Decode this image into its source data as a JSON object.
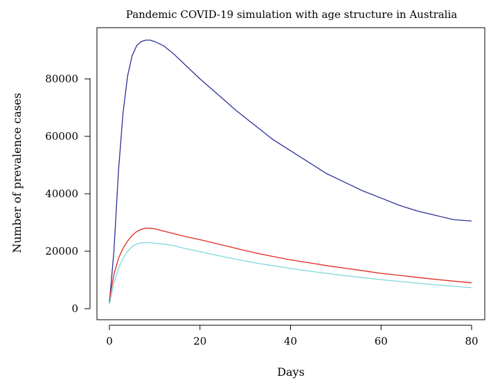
{
  "chart_data": {
    "type": "line",
    "title": "Pandemic COVID-19 simulation with age structure in Australia",
    "xlabel": "Days",
    "ylabel": "Number of prevalence cases",
    "xlim": [
      0,
      80
    ],
    "ylim": [
      0,
      93500
    ],
    "x_ticks": [
      0,
      20,
      40,
      60,
      80
    ],
    "y_ticks": [
      0,
      20000,
      40000,
      60000,
      80000
    ],
    "grid": false,
    "legend": "none",
    "series": [
      {
        "color": "#2b2f96",
        "x": [
          0,
          1,
          2,
          3,
          4,
          5,
          6,
          7,
          8,
          9,
          10,
          12,
          14,
          16,
          18,
          20,
          24,
          28,
          32,
          36,
          40,
          44,
          48,
          52,
          56,
          60,
          64,
          68,
          72,
          76,
          80
        ],
        "y": [
          2000,
          20000,
          48000,
          68000,
          81000,
          88000,
          91500,
          93000,
          93500,
          93500,
          93000,
          91500,
          89000,
          86000,
          83000,
          80000,
          74500,
          69000,
          64000,
          59000,
          55000,
          51000,
          47000,
          44000,
          41000,
          38500,
          36000,
          34000,
          32500,
          31000,
          30500
        ]
      },
      {
        "color": "#e0281e",
        "x": [
          0,
          1,
          2,
          3,
          4,
          5,
          6,
          7,
          8,
          9,
          10,
          12,
          14,
          16,
          20,
          24,
          28,
          32,
          36,
          40,
          44,
          48,
          52,
          56,
          60,
          64,
          68,
          72,
          76,
          80
        ],
        "y": [
          3000,
          12000,
          17500,
          21000,
          23500,
          25500,
          26800,
          27600,
          28000,
          28000,
          27800,
          27000,
          26200,
          25400,
          24000,
          22500,
          21000,
          19500,
          18200,
          17000,
          16000,
          15000,
          14100,
          13200,
          12300,
          11600,
          10900,
          10200,
          9600,
          9000
        ]
      },
      {
        "color": "#7fd6dc",
        "x": [
          0,
          1,
          2,
          3,
          4,
          5,
          6,
          7,
          8,
          9,
          10,
          12,
          14,
          16,
          20,
          24,
          28,
          32,
          36,
          40,
          44,
          48,
          52,
          56,
          60,
          64,
          68,
          72,
          76,
          80
        ],
        "y": [
          1500,
          9000,
          14000,
          17500,
          20000,
          21600,
          22500,
          22900,
          23000,
          23000,
          22800,
          22500,
          22000,
          21200,
          19800,
          18500,
          17200,
          16000,
          15000,
          14000,
          13100,
          12300,
          11500,
          10800,
          10100,
          9500,
          8900,
          8300,
          7800,
          7300
        ]
      }
    ]
  }
}
